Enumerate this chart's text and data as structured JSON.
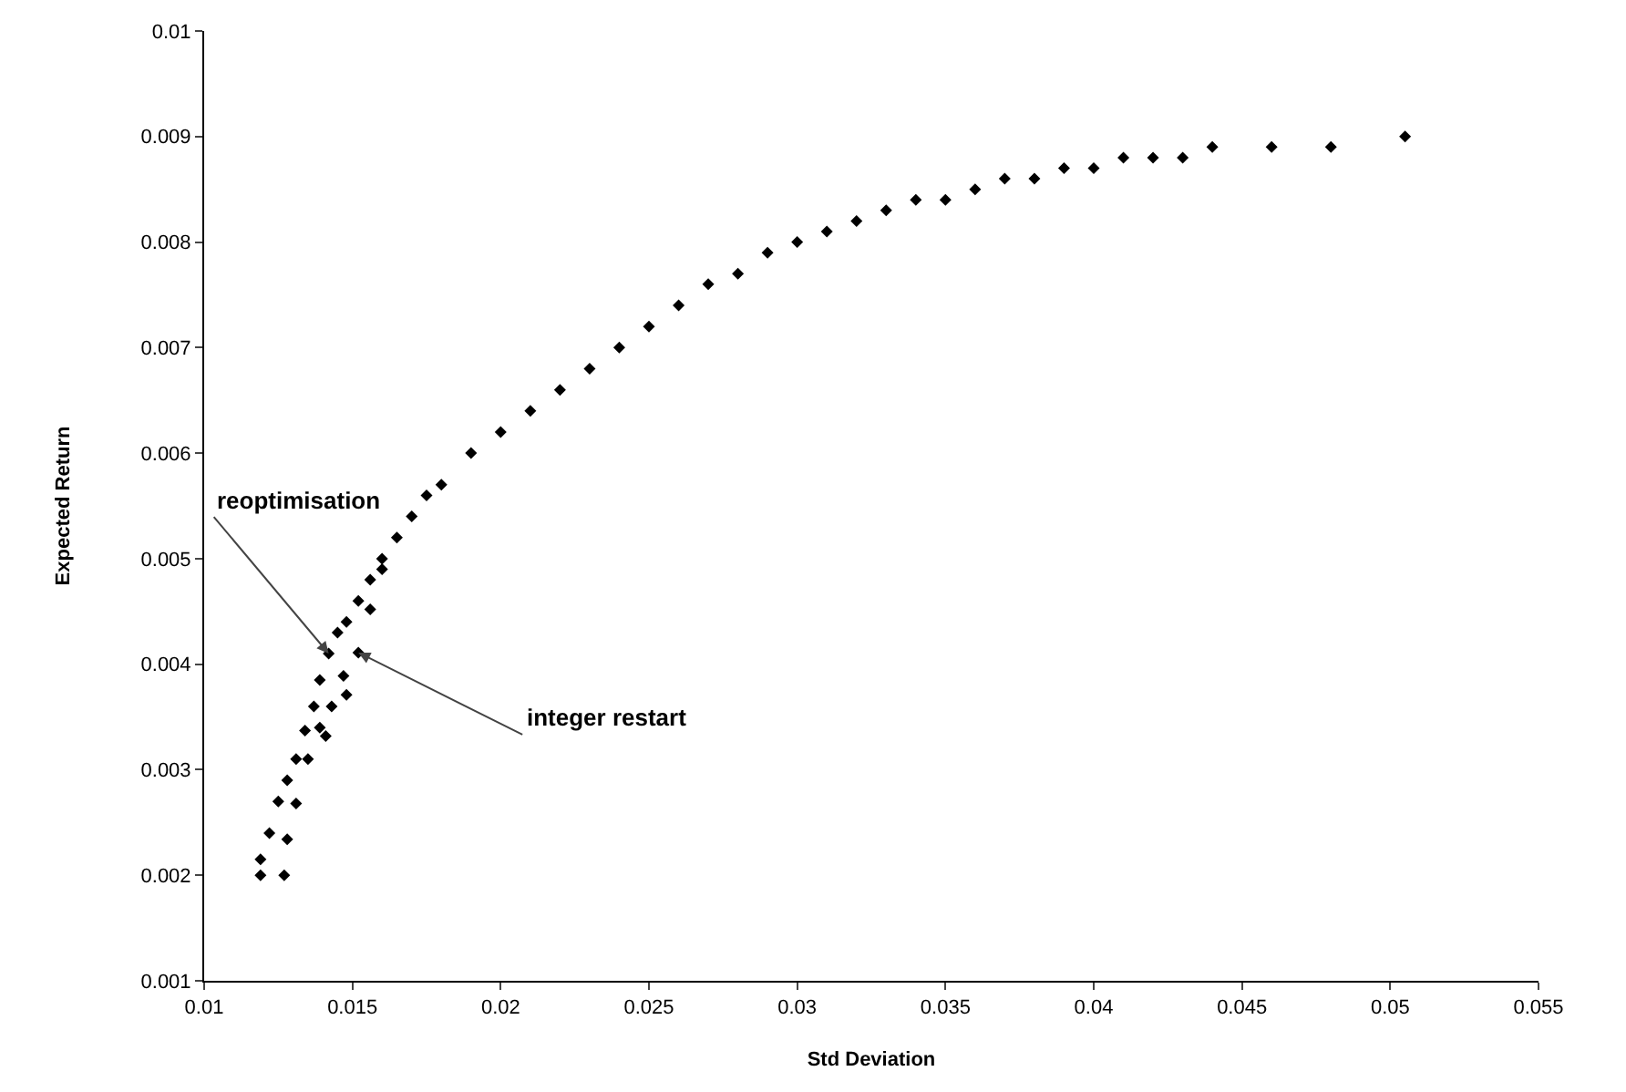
{
  "chart_data": {
    "type": "scatter",
    "xlabel": "Std Deviation",
    "ylabel": "Expected Return",
    "xlim": [
      0.01,
      0.055
    ],
    "xticks": [
      0.01,
      0.015,
      0.02,
      0.025,
      0.03,
      0.035,
      0.04,
      0.045,
      0.05,
      0.055
    ],
    "ylim": [
      0.001,
      0.01
    ],
    "yticks": [
      0.001,
      0.002,
      0.003,
      0.004,
      0.005,
      0.006,
      0.007,
      0.008,
      0.009,
      0.01
    ],
    "grid": false,
    "marker": "diamond",
    "series": [
      {
        "color": "#000000",
        "x": [
          0.0119,
          0.0119,
          0.0122,
          0.0125,
          0.0128,
          0.0131,
          0.0141,
          0.0134,
          0.0137,
          0.0148,
          0.0139,
          0.0142,
          0.0145,
          0.0148,
          0.0152,
          0.0156,
          0.016,
          0.0165,
          0.017,
          0.0175,
          0.018,
          0.019,
          0.02,
          0.021,
          0.022,
          0.023,
          0.024,
          0.025,
          0.026,
          0.027,
          0.028,
          0.029,
          0.03,
          0.031,
          0.032,
          0.033,
          0.034,
          0.035,
          0.036,
          0.037,
          0.038,
          0.039,
          0.04,
          0.041,
          0.042,
          0.043,
          0.044,
          0.046,
          0.048,
          0.0505
        ],
        "values": [
          0.002,
          0.00215,
          0.0024,
          0.0027,
          0.0029,
          0.0031,
          0.00332,
          0.00337,
          0.0036,
          0.00371,
          0.00385,
          0.0041,
          0.0043,
          0.0044,
          0.0046,
          0.0048,
          0.005,
          0.0052,
          0.0054,
          0.0056,
          0.0057,
          0.006,
          0.0062,
          0.0064,
          0.0066,
          0.0068,
          0.007,
          0.0072,
          0.0074,
          0.0076,
          0.0077,
          0.0079,
          0.008,
          0.0081,
          0.0082,
          0.0083,
          0.0084,
          0.0084,
          0.0085,
          0.0086,
          0.0086,
          0.0087,
          0.0087,
          0.0088,
          0.0088,
          0.0088,
          0.0089,
          0.0089,
          0.0089,
          0.009
        ]
      },
      {
        "color": "#000000",
        "x": [
          0.0127,
          0.0128,
          0.0131,
          0.0135,
          0.0139,
          0.0143,
          0.0147,
          0.0152,
          0.0156,
          0.016
        ],
        "values": [
          0.002,
          0.00234,
          0.00268,
          0.0031,
          0.0034,
          0.0036,
          0.00389,
          0.00411,
          0.00452,
          0.0049
        ]
      }
    ],
    "annotations": [
      {
        "text": "reoptimisation",
        "x": 0.0142,
        "y": 0.0041
      },
      {
        "text": "integer restart",
        "x": 0.0152,
        "y": 0.00411
      }
    ]
  }
}
